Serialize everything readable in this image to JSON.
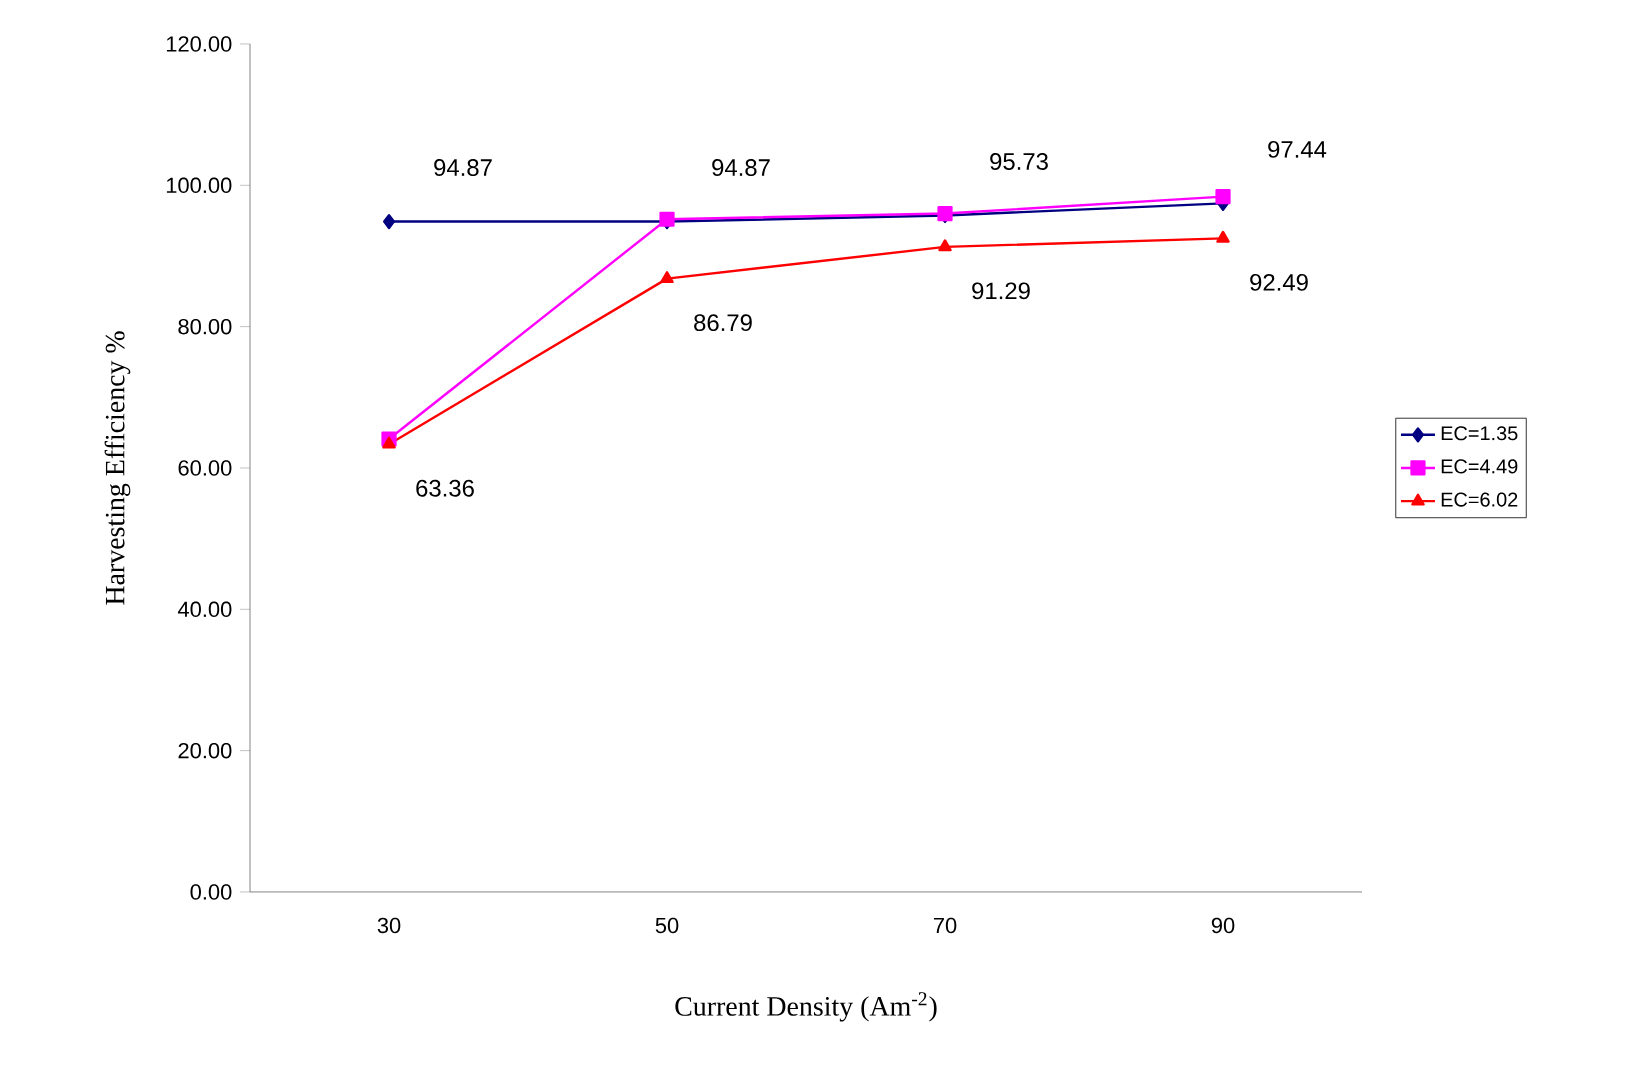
{
  "chart_data": {
    "type": "line",
    "xlabel": "Current Density (Am$^{-2}$)",
    "ylabel": "Harvesting Efficiency %",
    "categories": [
      "30",
      "50",
      "70",
      "90"
    ],
    "series": [
      {
        "name": "EC=1.35",
        "color": "#000080",
        "marker": "diamond",
        "values": [
          94.87,
          94.87,
          95.73,
          97.44
        ],
        "value_labels": [
          "94.87",
          "94.87",
          "95.73",
          "97.44"
        ]
      },
      {
        "name": "EC=4.49",
        "color": "#ff00ff",
        "marker": "square",
        "values": [
          64.1,
          95.2,
          96.0,
          98.4
        ]
      },
      {
        "name": "EC=6.02",
        "color": "#ff0000",
        "marker": "triangle",
        "values": [
          63.36,
          86.79,
          91.29,
          92.49
        ],
        "value_labels": [
          "63.36",
          "86.79",
          "91.29",
          "92.49"
        ]
      }
    ],
    "ylim": [
      0,
      120
    ],
    "yticks": [
      {
        "value": 0,
        "label": "0.00"
      },
      {
        "value": 20,
        "label": "20.00"
      },
      {
        "value": 40,
        "label": "40.00"
      },
      {
        "value": 60,
        "label": "60.00"
      },
      {
        "value": 80,
        "label": "80.00"
      },
      {
        "value": 100,
        "label": "100.00"
      },
      {
        "value": 120,
        "label": "120.00"
      }
    ],
    "grid": false,
    "legend": "right"
  }
}
